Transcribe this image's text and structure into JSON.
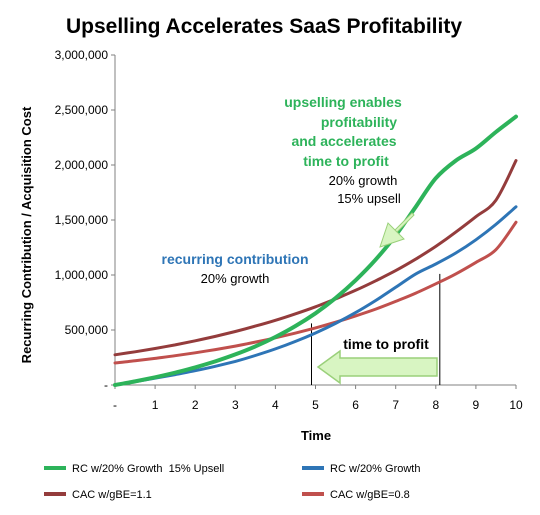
{
  "colors": {
    "green": "#2db35a",
    "blue": "#2e75b6",
    "dark_red": "#943c3c",
    "light_red": "#c0504d",
    "arrow_fill": "#d8f5c2",
    "arrow_stroke": "#9ad07a"
  },
  "chart_data": {
    "type": "line",
    "title": "Upselling Accelerates SaaS Profitability",
    "xlabel": "Time",
    "ylabel": "Recurring Contribution / Acquisition Cost",
    "xlim": [
      0,
      10
    ],
    "ylim": [
      0,
      3000000
    ],
    "x_ticks": [
      "-",
      "1",
      "2",
      "3",
      "4",
      "5",
      "6",
      "7",
      "8",
      "9",
      "10"
    ],
    "y_ticks": [
      "-",
      "500,000",
      "1,000,000",
      "1,500,000",
      "2,000,000",
      "2,500,000",
      "3,000,000"
    ],
    "grid": false,
    "legend_position": "bottom",
    "x": [
      0,
      0.5,
      1,
      1.5,
      2,
      2.5,
      3,
      3.5,
      4,
      4.5,
      5,
      5.5,
      6,
      6.5,
      7,
      7.5,
      8,
      8.5,
      9,
      9.5,
      10
    ],
    "series": [
      {
        "name": "RC w/20% Growth  15% Upsell",
        "color_key": "green",
        "values": [
          0,
          33000,
          70000,
          112000,
          160000,
          215000,
          278000,
          351000,
          436000,
          536000,
          652000,
          790000,
          952000,
          1140000,
          1360000,
          1620000,
          1880000,
          2040000,
          2150000,
          2300000,
          2440000
        ]
      },
      {
        "name": "RC w/20% Growth",
        "color_key": "blue",
        "values": [
          0,
          30000,
          62000,
          95000,
          130000,
          170000,
          215000,
          268000,
          328000,
          396000,
          473000,
          560000,
          658000,
          768000,
          888000,
          1010000,
          1100000,
          1200000,
          1320000,
          1460000,
          1620000
        ]
      },
      {
        "name": "CAC w/gBE=1.1",
        "color_key": "dark_red",
        "values": [
          275000,
          302000,
          332000,
          365000,
          402000,
          442000,
          486000,
          535000,
          588000,
          647000,
          711000,
          783000,
          861000,
          947000,
          1040000,
          1145000,
          1260000,
          1390000,
          1530000,
          1680000,
          2040000
        ]
      },
      {
        "name": "CAC w/gBE=0.8",
        "color_key": "light_red",
        "values": [
          200000,
          220000,
          242000,
          266000,
          293000,
          322000,
          354000,
          390000,
          429000,
          472000,
          519000,
          571000,
          628000,
          690000,
          760000,
          835000,
          920000,
          1010000,
          1115000,
          1230000,
          1480000
        ]
      }
    ],
    "annotations": {
      "upsell_lines": [
        "upselling enables",
        "profitability",
        "and accelerates",
        "time to profit"
      ],
      "upsell_growth": "20% growth",
      "upsell_pct": "15% upsell",
      "recurring_title": "recurring contribution",
      "recurring_growth": "20% growth",
      "time_to_profit": "time to profit"
    },
    "markers": {
      "time_to_profit_with_upsell": 4.9,
      "time_to_profit_without_upsell": 8.1
    }
  }
}
